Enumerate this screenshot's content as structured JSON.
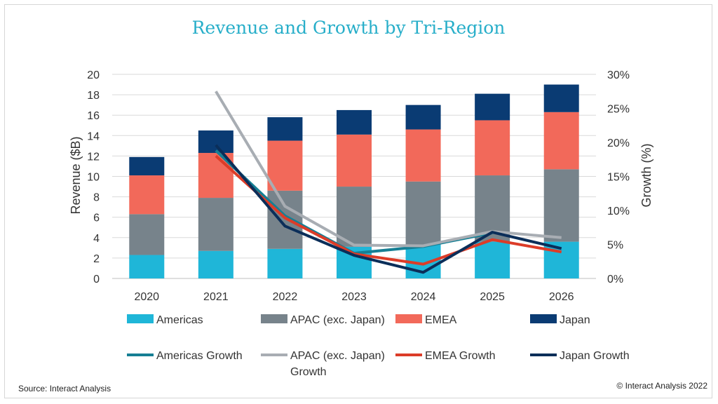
{
  "chart_data": {
    "type": "bar",
    "stacked": true,
    "title": "Revenue and Growth by Tri-Region",
    "categories": [
      "2020",
      "2021",
      "2022",
      "2023",
      "2024",
      "2025",
      "2026"
    ],
    "ylabel": "Revenue ($B)",
    "y2label": "Growth (%)",
    "ylim": [
      0,
      20
    ],
    "y2lim": [
      0,
      30
    ],
    "yticks": [
      "0",
      "2",
      "4",
      "6",
      "8",
      "10",
      "12",
      "14",
      "16",
      "18",
      "20"
    ],
    "y2ticks": [
      "0%",
      "5%",
      "10%",
      "15%",
      "20%",
      "25%",
      "30%"
    ],
    "series": [
      {
        "name": "Americas",
        "color": "#1fb6d8",
        "values": [
          2.3,
          2.7,
          2.9,
          3.1,
          3.3,
          3.6,
          3.6
        ]
      },
      {
        "name": "APAC (exc. Japan)",
        "color": "#77838b",
        "values": [
          4.0,
          5.2,
          5.7,
          5.9,
          6.2,
          6.5,
          7.1
        ]
      },
      {
        "name": "EMEA",
        "color": "#f2695a",
        "values": [
          3.8,
          4.4,
          4.9,
          5.1,
          5.1,
          5.4,
          5.6
        ]
      },
      {
        "name": "Japan",
        "color": "#0a3b73",
        "values": [
          1.8,
          2.2,
          2.3,
          2.4,
          2.4,
          2.6,
          2.7
        ]
      }
    ],
    "growth_series": [
      {
        "name": "Americas Growth",
        "color": "#167f94",
        "values": [
          null,
          18.8,
          9.2,
          3.7,
          4.7,
          6.7,
          null
        ]
      },
      {
        "name": "APAC (exc. Japan) Growth",
        "color": "#a8adb3",
        "values": [
          null,
          27.5,
          10.6,
          4.9,
          4.8,
          6.9,
          6.0
        ]
      },
      {
        "name": "EMEA Growth",
        "color": "#dc3c28",
        "values": [
          null,
          18.0,
          8.9,
          3.6,
          2.1,
          5.7,
          3.9
        ]
      },
      {
        "name": "Japan Growth",
        "color": "#0b2e59",
        "values": [
          null,
          19.6,
          7.7,
          3.4,
          0.9,
          6.8,
          4.4
        ]
      }
    ]
  },
  "footer": {
    "source": "Source: Interact Analysis",
    "copyright": "© Interact Analysis 2022"
  }
}
